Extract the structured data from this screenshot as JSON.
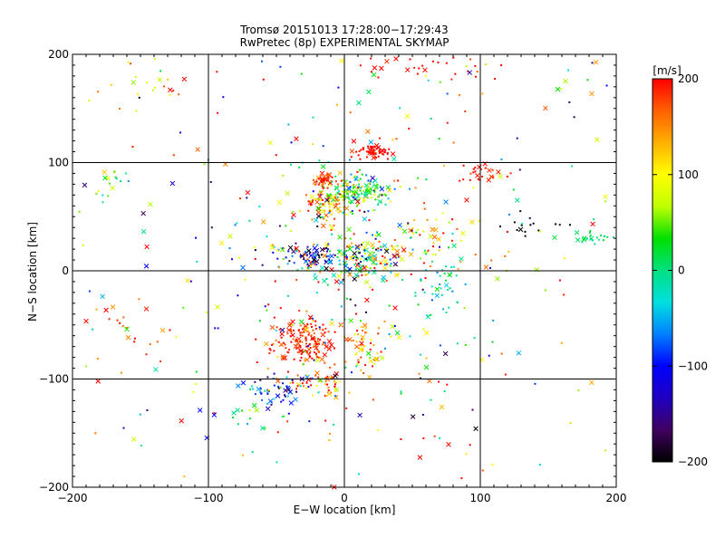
{
  "chart_data": {
    "type": "scatter",
    "title": "Tromsø 20151013 17:28:00−17:29:43",
    "subtitle": "RwPretec (8p) EXPERIMENTAL SKYMAP",
    "xlabel": "E−W location [km]",
    "ylabel": "N−S location [km]",
    "xlim": [
      -200,
      200
    ],
    "ylim": [
      -200,
      200
    ],
    "xticks": [
      -200,
      -100,
      0,
      100,
      200
    ],
    "yticks": [
      -200,
      -100,
      0,
      100,
      200
    ],
    "x_tick_labels": [
      "−200",
      "−100",
      "0",
      "100",
      "200"
    ],
    "y_tick_labels": [
      "−200",
      "−100",
      "0",
      "100",
      "200"
    ],
    "grid_lines": [
      -100,
      0,
      100
    ],
    "colorbar": {
      "label": "[m/s]",
      "range": [
        -200,
        200
      ],
      "ticks": [
        200,
        100,
        0,
        -100,
        -200
      ],
      "tick_labels": [
        "200",
        "100",
        "0",
        "−100",
        "−200"
      ],
      "colors": [
        "#000000",
        "#400060",
        "#2000c0",
        "#0000ff",
        "#0080ff",
        "#00e0e0",
        "#00e080",
        "#00e000",
        "#c0ff00",
        "#ffff00",
        "#ffb000",
        "#ff6000",
        "#ff0000"
      ]
    },
    "markers": "small dots and x crosses, colored by velocity",
    "clusters": [
      {
        "x": 20,
        "y": 110,
        "sx": 6,
        "sy": 3,
        "n": 60,
        "v": 200,
        "vs": 15
      },
      {
        "x": 10,
        "y": 75,
        "sx": 12,
        "sy": 8,
        "n": 140,
        "v": 20,
        "vs": 60
      },
      {
        "x": -15,
        "y": 85,
        "sx": 5,
        "sy": 3,
        "n": 40,
        "v": 180,
        "vs": 20
      },
      {
        "x": -10,
        "y": 60,
        "sx": 10,
        "sy": 10,
        "n": 80,
        "v": 130,
        "vs": 60
      },
      {
        "x": 10,
        "y": 10,
        "sx": 15,
        "sy": 10,
        "n": 160,
        "v": 40,
        "vs": 120
      },
      {
        "x": -25,
        "y": 15,
        "sx": 10,
        "sy": 5,
        "n": 60,
        "v": -150,
        "vs": 60
      },
      {
        "x": -30,
        "y": -65,
        "sx": 12,
        "sy": 10,
        "n": 160,
        "v": 190,
        "vs": 20
      },
      {
        "x": 15,
        "y": -70,
        "sx": 8,
        "sy": 15,
        "n": 50,
        "v": 140,
        "vs": 50
      },
      {
        "x": -20,
        "y": -105,
        "sx": 12,
        "sy": 6,
        "n": 50,
        "v": 160,
        "vs": 50
      },
      {
        "x": -50,
        "y": -110,
        "sx": 15,
        "sy": 10,
        "n": 45,
        "v": -110,
        "vs": 40
      },
      {
        "x": 60,
        "y": 30,
        "sx": 15,
        "sy": 10,
        "n": 40,
        "v": 110,
        "vs": 50
      },
      {
        "x": 70,
        "y": -15,
        "sx": 8,
        "sy": 15,
        "n": 40,
        "v": -20,
        "vs": 30
      },
      {
        "x": 185,
        "y": 30,
        "sx": 10,
        "sy": 3,
        "n": 25,
        "v": 10,
        "vs": 20
      },
      {
        "x": 100,
        "y": 90,
        "sx": 10,
        "sy": 5,
        "n": 25,
        "v": 200,
        "vs": 15
      },
      {
        "x": -175,
        "y": 80,
        "sx": 5,
        "sy": 8,
        "n": 15,
        "v": 40,
        "vs": 30
      },
      {
        "x": 60,
        "y": 190,
        "sx": 25,
        "sy": 8,
        "n": 30,
        "v": 200,
        "vs": 15
      },
      {
        "x": 140,
        "y": 40,
        "sx": 15,
        "sy": 5,
        "n": 15,
        "v": -200,
        "vs": 10
      },
      {
        "x": -70,
        "y": -130,
        "sx": 10,
        "sy": 10,
        "n": 20,
        "v": 20,
        "vs": 40
      },
      {
        "x": -160,
        "y": -50,
        "sx": 15,
        "sy": 15,
        "n": 20,
        "v": 180,
        "vs": 30
      },
      {
        "x": -150,
        "y": 180,
        "sx": 20,
        "sy": 15,
        "n": 20,
        "v": 120,
        "vs": 50
      }
    ],
    "scatter_count": 450
  }
}
